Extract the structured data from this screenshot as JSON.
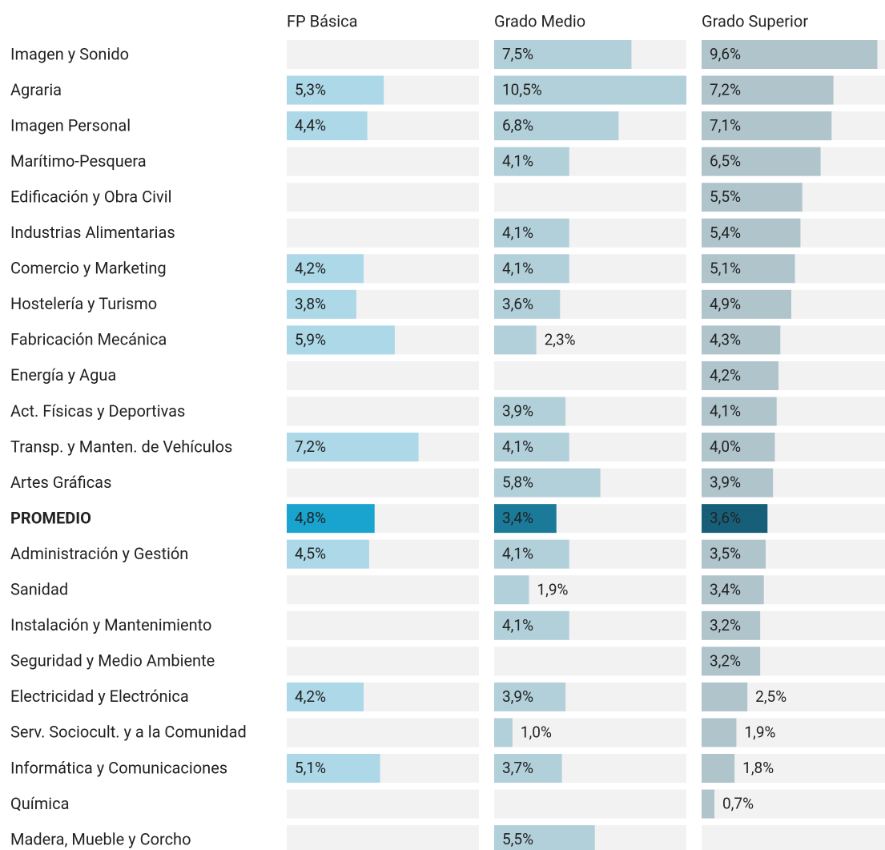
{
  "chart_data": {
    "type": "bar",
    "orientation": "horizontal",
    "categories": [
      "Imagen y Sonido",
      "Agraria",
      "Imagen Personal",
      "Marítimo-Pesquera",
      "Edificación y Obra Civil",
      "Industrias Alimentarias",
      "Comercio y Marketing",
      "Hostelería y Turismo",
      "Fabricación Mecánica",
      "Energía y Agua",
      "Act. Físicas y Deportivas",
      "Transp. y Manten. de Vehículos",
      "Artes Gráficas",
      "PROMEDIO",
      "Administración y Gestión",
      "Sanidad",
      "Instalación y Mantenimiento",
      "Seguridad y Medio Ambiente",
      "Electricidad y Electrónica",
      "Serv. Sociocult. y a la Comunidad",
      "Informática y Comunicaciones",
      "Química",
      "Madera, Mueble y Corcho"
    ],
    "highlight": "PROMEDIO",
    "series": [
      {
        "name": "FP Básica",
        "color": "#acd8e7",
        "highlight_color": "#19a4d0",
        "values": [
          null,
          5.3,
          4.4,
          null,
          null,
          null,
          4.2,
          3.8,
          5.9,
          null,
          null,
          7.2,
          null,
          4.8,
          4.5,
          null,
          null,
          null,
          4.2,
          null,
          5.1,
          null,
          null
        ],
        "value_labels": [
          null,
          "5,3%",
          "4,4%",
          null,
          null,
          null,
          "4,2%",
          "3,8%",
          "5,9%",
          null,
          null,
          "7,2%",
          null,
          "4,8%",
          "4,5%",
          null,
          null,
          null,
          "4,2%",
          null,
          "5,1%",
          null,
          null
        ]
      },
      {
        "name": "Grado Medio",
        "color": "#b2d0da",
        "highlight_color": "#1b7a9a",
        "values": [
          7.5,
          10.5,
          6.8,
          4.1,
          null,
          4.1,
          4.1,
          3.6,
          2.3,
          null,
          3.9,
          4.1,
          5.8,
          3.4,
          4.1,
          1.9,
          4.1,
          null,
          3.9,
          1.0,
          3.7,
          null,
          5.5
        ],
        "value_labels": [
          "7,5%",
          "10,5%",
          "6,8%",
          "4,1%",
          null,
          "4,1%",
          "4,1%",
          "3,6%",
          "2,3%",
          null,
          "3,9%",
          "4,1%",
          "5,8%",
          "3,4%",
          "4,1%",
          "1,9%",
          "4,1%",
          null,
          "3,9%",
          "1,0%",
          "3,7%",
          null,
          "5,5%"
        ]
      },
      {
        "name": "Grado Superior",
        "color": "#b0c4cc",
        "highlight_color": "#175f79",
        "values": [
          9.6,
          7.2,
          7.1,
          6.5,
          5.5,
          5.4,
          5.1,
          4.9,
          4.3,
          4.2,
          4.1,
          4.0,
          3.9,
          3.6,
          3.5,
          3.4,
          3.2,
          3.2,
          2.5,
          1.9,
          1.8,
          0.7,
          null
        ],
        "value_labels": [
          "9,6%",
          "7,2%",
          "7,1%",
          "6,5%",
          "5,5%",
          "5,4%",
          "5,1%",
          "4,9%",
          "4,3%",
          "4,2%",
          "4,1%",
          "4,0%",
          "3,9%",
          "3,6%",
          "3,5%",
          "3,4%",
          "3,2%",
          "3,2%",
          "2,5%",
          "1,9%",
          "1,8%",
          "0,7%",
          null
        ]
      }
    ]
  }
}
